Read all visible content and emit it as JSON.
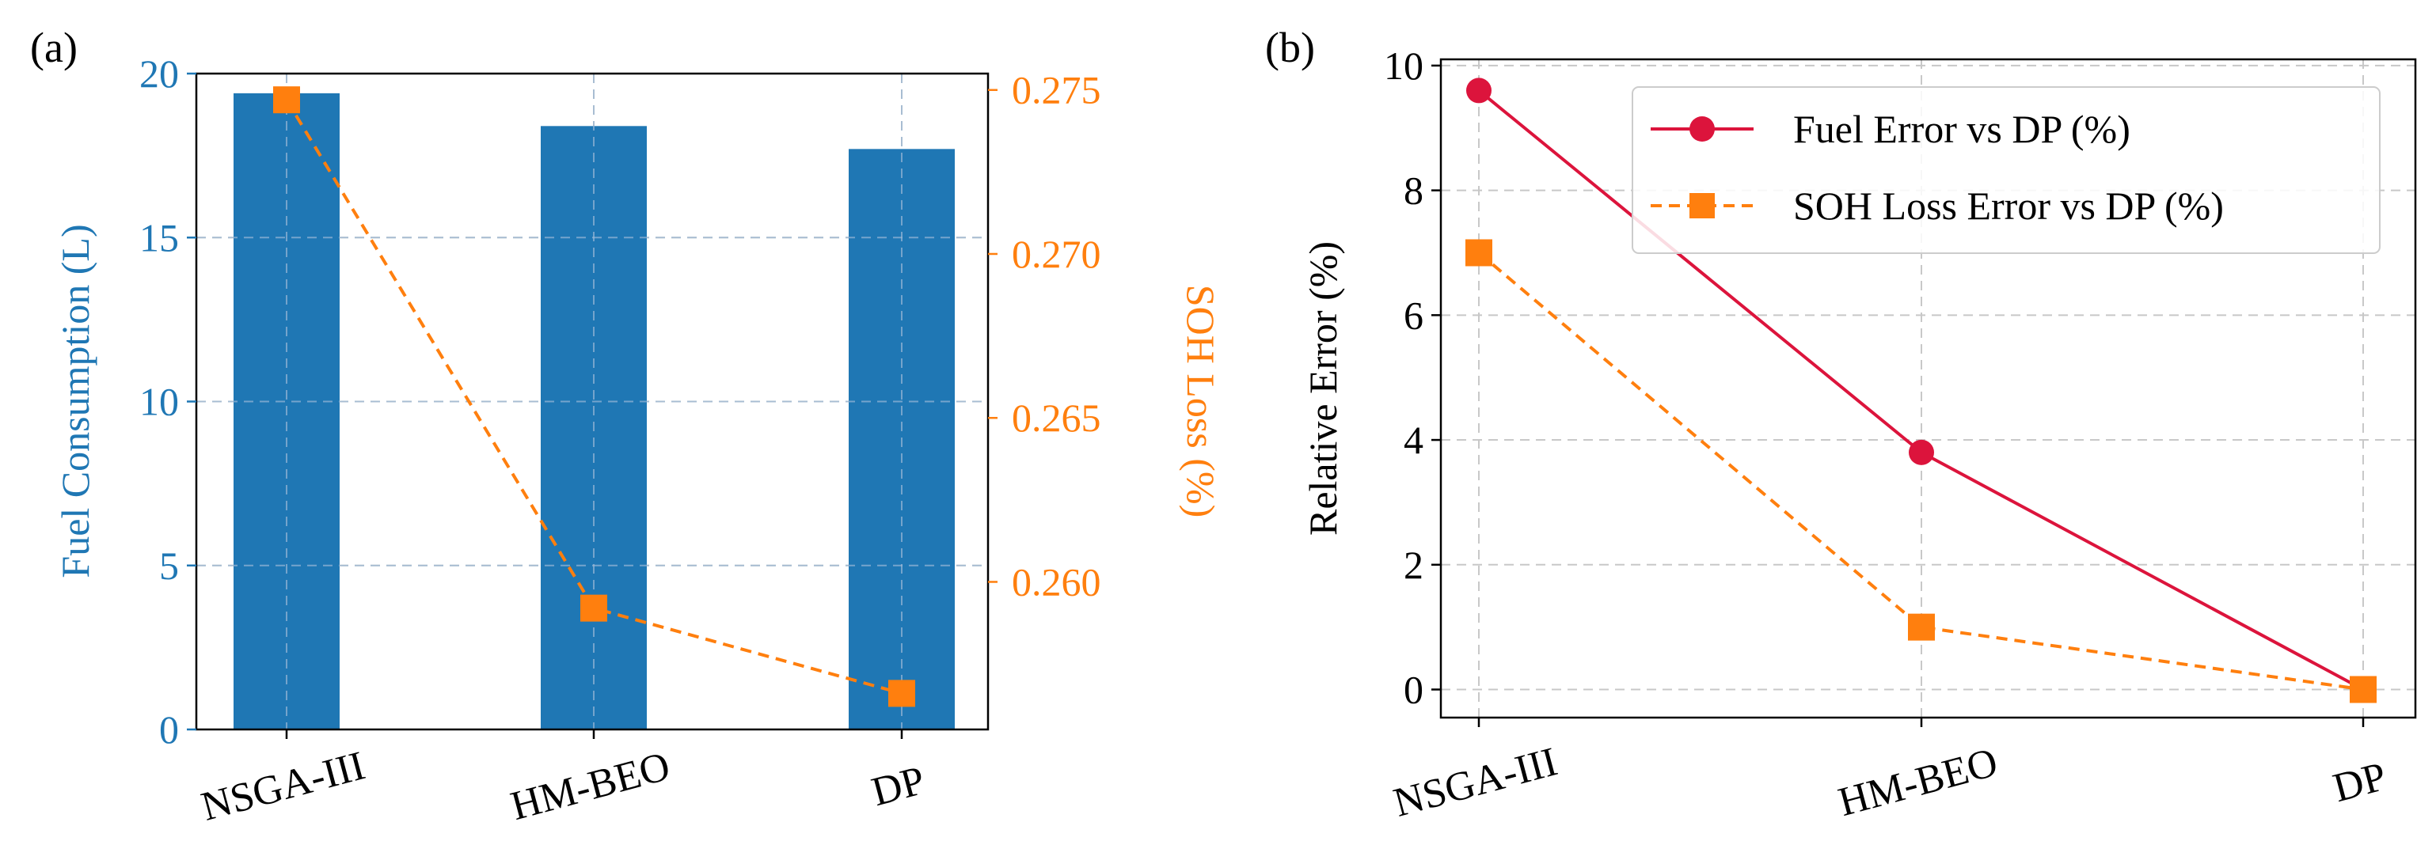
{
  "panel_a_label": "(a)",
  "panel_b_label": "(b)",
  "colors": {
    "bar": "#1f77b4",
    "soh": "#ff7f0e",
    "fuel_error": "#dc143c",
    "grid": "#c8c8c8",
    "axis": "#000000"
  },
  "chart_data": [
    {
      "id": "a",
      "type": "bar",
      "categories": [
        "NSGA-III",
        "HM-BEO",
        "DP"
      ],
      "series": [
        {
          "name": "Fuel Consumption (L)",
          "type": "bar",
          "axis": "left",
          "values": [
            19.4,
            18.4,
            17.7
          ]
        },
        {
          "name": "SOH Loss (%)",
          "type": "line",
          "axis": "right",
          "marker": "square",
          "linestyle": "dashed",
          "values": [
            0.2747,
            0.2592,
            0.2566
          ]
        }
      ],
      "ylabel": "Fuel Consumption (L)",
      "ylim": [
        0,
        20
      ],
      "yticks": [
        0,
        5,
        10,
        15,
        20
      ],
      "ytick_labels": [
        "0",
        "5",
        "10",
        "15",
        "20"
      ],
      "y2label": "SOH Loss (%)",
      "y2lim": [
        0.2555,
        0.2755
      ],
      "y2ticks": [
        0.26,
        0.265,
        0.27,
        0.275
      ],
      "y2tick_labels": [
        "0.260",
        "0.265",
        "0.270",
        "0.275"
      ],
      "grid": true
    },
    {
      "id": "b",
      "type": "line",
      "categories": [
        "NSGA-III",
        "HM-BEO",
        "DP"
      ],
      "series": [
        {
          "name": "Fuel Error vs DP (%)",
          "marker": "circle",
          "linestyle": "solid",
          "values": [
            9.6,
            3.8,
            0.0
          ]
        },
        {
          "name": "SOH Loss Error vs DP (%)",
          "marker": "square",
          "linestyle": "dashed",
          "values": [
            7.0,
            1.0,
            0.0
          ]
        }
      ],
      "ylabel": "Relative Error (%)",
      "ylim": [
        -0.45,
        10.1
      ],
      "yticks": [
        0,
        2,
        4,
        6,
        8,
        10
      ],
      "ytick_labels": [
        "0",
        "2",
        "4",
        "6",
        "8",
        "10"
      ],
      "legend": "top-right",
      "grid": true
    }
  ]
}
